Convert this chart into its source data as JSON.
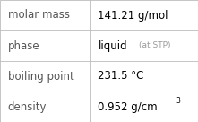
{
  "rows": [
    {
      "label": "molar mass",
      "value": "141.21 g/mol",
      "annotation": null,
      "superscript": null
    },
    {
      "label": "phase",
      "value": "liquid",
      "annotation": "(at STP)",
      "superscript": null
    },
    {
      "label": "boiling point",
      "value": "231.5 °C",
      "annotation": null,
      "superscript": null
    },
    {
      "label": "density",
      "value": "0.952 g/cm",
      "annotation": null,
      "superscript": "3"
    }
  ],
  "bg_color": "#ffffff",
  "border_color": "#bbbbbb",
  "label_font_size": 8.5,
  "value_font_size": 8.5,
  "annotation_font_size": 6.5,
  "superscript_font_size": 5.5,
  "label_color": "#555555",
  "value_color": "#000000",
  "annotation_color": "#999999",
  "col_split": 0.455
}
